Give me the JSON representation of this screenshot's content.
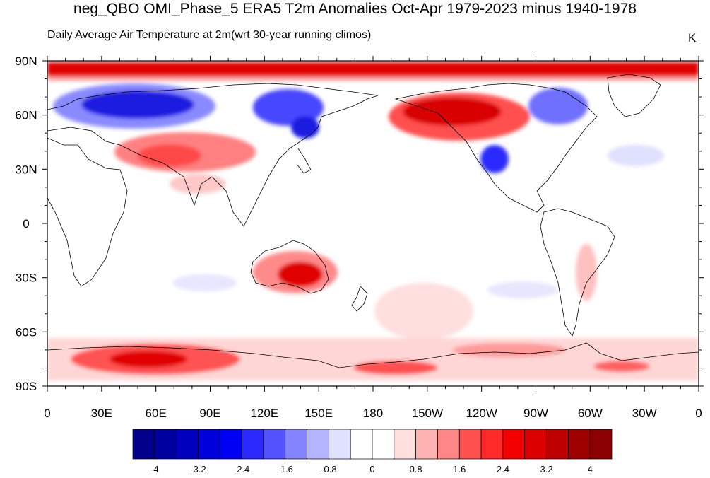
{
  "title": "neg_QBO OMI_Phase_5 ERA5 T2m Anomalies Oct-Apr 1979-2023 minus 1940-1978",
  "subtitle_left": "Daily Average Air Temperature at 2m",
  "subtitle_center": "(wrt 30-year running climos)",
  "units": "K",
  "map": {
    "projection": "cylindrical-equidistant",
    "lon_center": 180,
    "lon_range": [
      0,
      360
    ],
    "lat_range": [
      -90,
      90
    ],
    "y_ticks": [
      "90N",
      "60N",
      "30N",
      "0",
      "30S",
      "60S",
      "90S"
    ],
    "x_ticks": [
      "0",
      "30E",
      "60E",
      "90E",
      "120E",
      "150E",
      "180",
      "150W",
      "120W",
      "90W",
      "60W",
      "30W",
      "0"
    ],
    "coastlines": true
  },
  "colorbar": {
    "colors": [
      "#00008b",
      "#00009e",
      "#0000bd",
      "#0000dc",
      "#0000f5",
      "#2a2aff",
      "#5252ff",
      "#8484ff",
      "#b4b4ff",
      "#e0e0ff",
      "#ffffff",
      "#ffffff",
      "#ffdede",
      "#ffb2b2",
      "#ff8686",
      "#ff5050",
      "#ff2a2a",
      "#f50000",
      "#dc0000",
      "#bd0000",
      "#9e0000",
      "#8b0000"
    ],
    "labels": [
      "-4",
      "-3.2",
      "-2.4",
      "-1.6",
      "-0.8",
      "0",
      "0.8",
      "1.6",
      "2.4",
      "3.2",
      "4"
    ]
  },
  "anomaly_regions": [
    {
      "name": "arctic-warm-band",
      "lon": 180,
      "lat": 84,
      "level": 2.6
    },
    {
      "name": "north-eurasia-cold",
      "lon": 55,
      "lat": 64,
      "level": -3.6
    },
    {
      "name": "east-siberia-cold",
      "lon": 130,
      "lat": 60,
      "level": -3.0
    },
    {
      "name": "central-asia-warm",
      "lon": 65,
      "lat": 38,
      "level": 1.8
    },
    {
      "name": "alaska-warm",
      "lon": 215,
      "lat": 62,
      "level": 3.4
    },
    {
      "name": "western-us-cold",
      "lon": 245,
      "lat": 38,
      "level": -3.2
    },
    {
      "name": "hudson-bay-cold",
      "lon": 278,
      "lat": 60,
      "level": -2.2
    },
    {
      "name": "australia-warm",
      "lon": 135,
      "lat": -28,
      "level": 3.4
    },
    {
      "name": "antarctica-east-warm",
      "lon": 55,
      "lat": -75,
      "level": 2.8
    },
    {
      "name": "antarctica-ross-warm",
      "lon": 205,
      "lat": -80,
      "level": 2.2
    },
    {
      "name": "weddell-warm",
      "lon": 320,
      "lat": -78,
      "level": 2.4
    },
    {
      "name": "south-pacific-warm",
      "lon": 200,
      "lat": -45,
      "level": 1.0
    }
  ]
}
